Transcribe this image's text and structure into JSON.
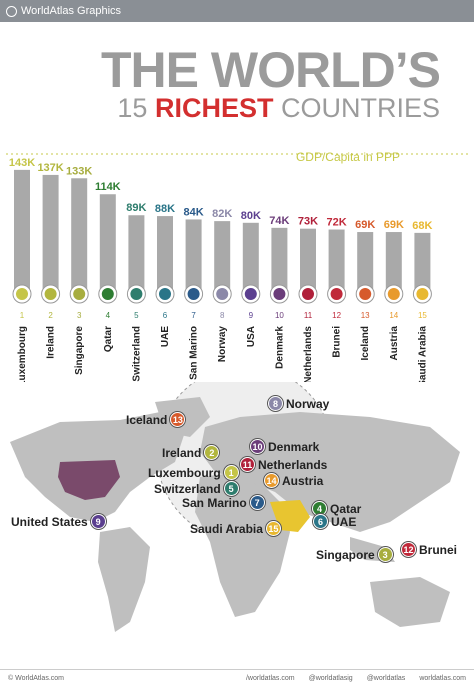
{
  "header": {
    "brand": "WorldAtlas Graphics"
  },
  "title": {
    "line1": "THE WORLD’S",
    "num": "15",
    "rich": "RICHEST",
    "tail": "COUNTRIES"
  },
  "chart_data": {
    "type": "bar",
    "measure_label": "GDP/Capita in PPP",
    "ylim": [
      0,
      150
    ],
    "categories": [
      "Luxembourg",
      "Ireland",
      "Singapore",
      "Qatar",
      "Switzerland",
      "UAE",
      "San Marino",
      "Norway",
      "USA",
      "Denmark",
      "Netherlands",
      "Brunei",
      "Iceland",
      "Austria",
      "Saudi Arabia"
    ],
    "values": [
      143,
      137,
      133,
      114,
      89,
      88,
      84,
      82,
      80,
      74,
      73,
      72,
      69,
      69,
      68
    ],
    "value_labels": [
      "143K",
      "137K",
      "133K",
      "114K",
      "89K",
      "88K",
      "84K",
      "82K",
      "80K",
      "74K",
      "73K",
      "72K",
      "69K",
      "69K",
      "68K"
    ],
    "ranks": [
      "1",
      "2",
      "3",
      "4",
      "5",
      "6",
      "7",
      "8",
      "9",
      "10",
      "11",
      "12",
      "13",
      "14",
      "15"
    ],
    "colors": [
      "#c5c548",
      "#b2b63e",
      "#a7ad3f",
      "#2e7d32",
      "#2e7d6d",
      "#2a7588",
      "#2a5a8a",
      "#8b88a8",
      "#5b3f8f",
      "#6b3d7a",
      "#b0203a",
      "#c0293a",
      "#d65a2c",
      "#e89a2c",
      "#e8b830"
    ]
  },
  "map": {
    "callouts": [
      {
        "name": "Norway",
        "rank": "8",
        "color": "#8b88a8"
      },
      {
        "name": "Iceland",
        "rank": "13",
        "color": "#d65a2c"
      },
      {
        "name": "Ireland",
        "rank": "2",
        "color": "#b2b63e"
      },
      {
        "name": "Denmark",
        "rank": "10",
        "color": "#6b3d7a"
      },
      {
        "name": "Netherlands",
        "rank": "11",
        "color": "#b0203a"
      },
      {
        "name": "Luxembourg",
        "rank": "1",
        "color": "#c5c548"
      },
      {
        "name": "Austria",
        "rank": "14",
        "color": "#e89a2c"
      },
      {
        "name": "Switzerland",
        "rank": "5",
        "color": "#2e7d6d"
      },
      {
        "name": "San Marino",
        "rank": "7",
        "color": "#2a5a8a"
      },
      {
        "name": "Qatar",
        "rank": "4",
        "color": "#2e7d32"
      },
      {
        "name": "UAE",
        "rank": "6",
        "color": "#2a7588"
      },
      {
        "name": "Saudi Arabia",
        "rank": "15",
        "color": "#e8b830"
      },
      {
        "name": "United States",
        "rank": "9",
        "color": "#5b3f8f"
      },
      {
        "name": "Singapore",
        "rank": "3",
        "color": "#a7ad3f"
      },
      {
        "name": "Brunei",
        "rank": "12",
        "color": "#c0293a"
      }
    ]
  },
  "footer": {
    "site": "© WorldAtlas.com",
    "links": [
      "/worldatlas.com",
      "@worldatlasig",
      "@worldatlas",
      "worldatlas.com"
    ]
  }
}
